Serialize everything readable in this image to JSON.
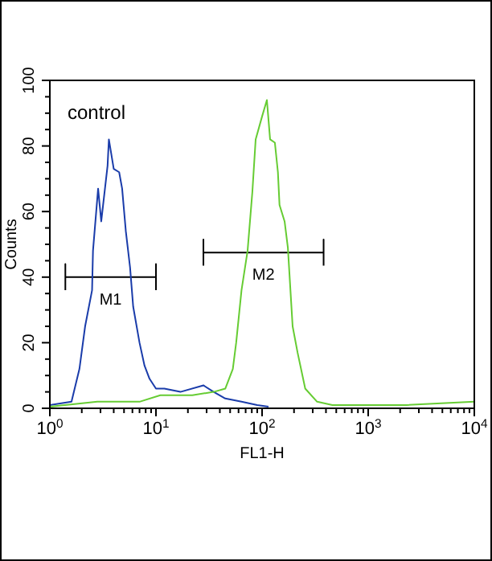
{
  "chart_data": {
    "type": "line",
    "xlabel": "FL1-H",
    "ylabel": "Counts",
    "log": "x",
    "annotations": [
      "control",
      {
        "text": "M1",
        "x": 3.74,
        "y": 40
      },
      {
        "text": "M2",
        "x": 103,
        "y": 47.5
      }
    ],
    "xlim": [
      1,
      10000
    ],
    "xticks": [
      {
        "value": 1,
        "label": "10$^{0}$"
      },
      {
        "value": 2,
        "label": null
      },
      {
        "value": 3,
        "label": null
      },
      {
        "value": 4,
        "label": null
      },
      {
        "value": 5,
        "label": null
      },
      {
        "value": 6,
        "label": null
      },
      {
        "value": 7,
        "label": null
      },
      {
        "value": 8,
        "label": null
      },
      {
        "value": 9,
        "label": null
      },
      {
        "value": 10,
        "label": "10$^{1}$"
      },
      {
        "value": 20,
        "label": null
      },
      {
        "value": 30,
        "label": null
      },
      {
        "value": 40,
        "label": null
      },
      {
        "value": 50,
        "label": null
      },
      {
        "value": 60,
        "label": null
      },
      {
        "value": 70,
        "label": null
      },
      {
        "value": 80,
        "label": null
      },
      {
        "value": 90,
        "label": null
      },
      {
        "value": 100,
        "label": "10$^{2}$"
      },
      {
        "value": 200,
        "label": null
      },
      {
        "value": 300,
        "label": null
      },
      {
        "value": 400,
        "label": null
      },
      {
        "value": 500,
        "label": null
      },
      {
        "value": 600,
        "label": null
      },
      {
        "value": 700,
        "label": null
      },
      {
        "value": 800,
        "label": null
      },
      {
        "value": 900,
        "label": null
      },
      {
        "value": 1000,
        "label": "10$^{3}$"
      },
      {
        "value": 2000,
        "label": null
      },
      {
        "value": 3000,
        "label": null
      },
      {
        "value": 4000,
        "label": null
      },
      {
        "value": 5000,
        "label": null
      },
      {
        "value": 6000,
        "label": null
      },
      {
        "value": 7000,
        "label": null
      },
      {
        "value": 8000,
        "label": null
      },
      {
        "value": 9000,
        "label": null
      },
      {
        "value": 10000,
        "label": "10$^{4}$"
      }
    ],
    "ylim": [
      0,
      100
    ],
    "yticks": [
      0,
      {
        "value": 5,
        "label": null
      },
      {
        "value": 10,
        "label": null
      },
      {
        "value": 15,
        "label": null
      },
      20,
      {
        "value": 25,
        "label": null
      },
      {
        "value": 30,
        "label": null
      },
      {
        "value": 35,
        "label": null
      },
      40,
      {
        "value": 45,
        "label": null
      },
      {
        "value": 50,
        "label": null
      },
      {
        "value": 55,
        "label": null
      },
      60,
      {
        "value": 65,
        "label": null
      },
      {
        "value": 70,
        "label": null
      },
      {
        "value": 75,
        "label": null
      },
      80,
      {
        "value": 85,
        "label": null
      },
      {
        "value": 90,
        "label": null
      },
      {
        "value": 95,
        "label": null
      },
      100
    ],
    "grid": false,
    "marker": "none",
    "line_style": "solid",
    "series": [
      {
        "color": "#000000",
        "x": [
          1.4,
          1.4,
          1.4,
          10,
          10,
          10
        ],
        "values": [
          36,
          44,
          40,
          40,
          44,
          36
        ]
      },
      {
        "color": "#000000",
        "x": [
          28,
          28,
          28,
          380,
          380,
          380
        ],
        "values": [
          43.5,
          51.5,
          47.5,
          47.5,
          51.5,
          43.5
        ]
      },
      {
        "color": "#1a3caa",
        "x": [
          1,
          1.6,
          1.9,
          2.15,
          2.5,
          2.55,
          2.85,
          3.05,
          3.5,
          3.6,
          4,
          4.5,
          4.8,
          5.2,
          5.7,
          6.1,
          7,
          7.8,
          8.7,
          10,
          12,
          17,
          28,
          35,
          45,
          64,
          90,
          115
        ],
        "values": [
          1,
          2,
          12,
          25,
          36,
          48,
          67,
          57,
          74,
          82,
          73,
          72,
          67,
          54,
          43,
          31,
          20,
          13,
          9,
          6,
          6,
          5,
          7,
          5,
          3,
          2,
          1,
          0.5
        ]
      },
      {
        "color": "#66cc33",
        "x": [
          1,
          2.8,
          7,
          11,
          22,
          35,
          45,
          53,
          57,
          64,
          73,
          81,
          87,
          100,
          111,
          119,
          132,
          141,
          146,
          163,
          175,
          194,
          216,
          255,
          330,
          460,
          2300,
          10000
        ],
        "values": [
          0.5,
          2,
          2,
          4,
          4,
          5,
          6,
          12,
          20,
          36,
          48,
          66,
          82,
          89,
          94,
          82,
          81,
          72,
          62,
          57,
          49,
          25,
          17,
          6,
          2,
          1,
          1,
          2
        ]
      }
    ]
  }
}
